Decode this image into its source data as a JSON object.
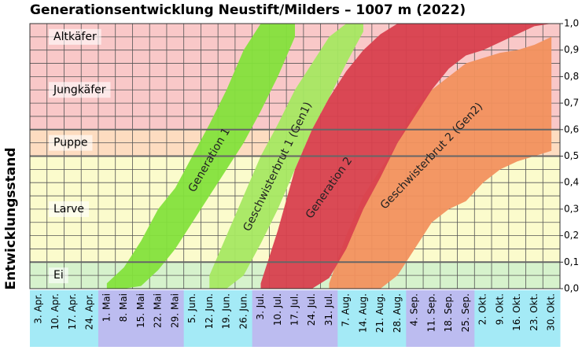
{
  "chart_data": {
    "type": "band",
    "title": "Generationsentwicklung Neustift/Milders – 1007 m (2022)",
    "y_label": "Entwicklungsstand",
    "categories": [
      "3. Apr.",
      "10. Apr.",
      "17. Apr.",
      "24. Apr.",
      "1. Mai",
      "8. Mai",
      "15. Mai",
      "22. Mai",
      "29. Mai",
      "5. Jun.",
      "12. Jun.",
      "19. Jun.",
      "26. Jun.",
      "3. Jul.",
      "10. Jul.",
      "17. Jul.",
      "24. Jul.",
      "31. Jul.",
      "7. Aug.",
      "14. Aug.",
      "21. Aug.",
      "28. Aug.",
      "4. Sep.",
      "11. Sep.",
      "18. Sep.",
      "25. Sep.",
      "2. Okt.",
      "9. Okt.",
      "16. Okt.",
      "23. Okt.",
      "30. Okt."
    ],
    "x_label_colors": [
      "#a4eaf6",
      "#bcbcf0"
    ],
    "ylim": [
      0,
      1
    ],
    "yticks": [
      {
        "value": 0,
        "label": "0,0"
      },
      {
        "value": 0.1,
        "label": "0,1"
      },
      {
        "value": 0.2,
        "label": "0,2"
      },
      {
        "value": 0.3,
        "label": "0,3"
      },
      {
        "value": 0.4,
        "label": "0,4"
      },
      {
        "value": 0.5,
        "label": "0,5"
      },
      {
        "value": 0.6,
        "label": "0,6"
      },
      {
        "value": 0.7,
        "label": "0,7"
      },
      {
        "value": 0.8,
        "label": "0,8"
      },
      {
        "value": 0.9,
        "label": "0,9"
      },
      {
        "value": 1,
        "label": "1,0"
      }
    ],
    "grid": true,
    "stages": [
      {
        "name": "Ei",
        "from": 0,
        "to": 0.1,
        "color": "#d6f2cc"
      },
      {
        "name": "Larve",
        "from": 0.1,
        "to": 0.5,
        "color": "#fbfbcc"
      },
      {
        "name": "Puppe",
        "from": 0.5,
        "to": 0.6,
        "color": "#fddcc0"
      },
      {
        "name": "Jungkäfer",
        "from": 0.6,
        "to": 0.9,
        "color": "#f9c8c8"
      },
      {
        "name": "Altkäfer",
        "from": 0.9,
        "to": 1,
        "color": "#f9c8c8"
      }
    ],
    "series": [
      {
        "name": "Generation 1",
        "color": "#84e23c",
        "upper": [
          null,
          null,
          null,
          null,
          0.02,
          0.08,
          0.18,
          0.3,
          0.38,
          0.5,
          0.62,
          0.75,
          0.9,
          1,
          1,
          1,
          null,
          null,
          null,
          null,
          null,
          null,
          null,
          null,
          null,
          null,
          null,
          null,
          null,
          null,
          null
        ],
        "lower": [
          null,
          null,
          null,
          null,
          0,
          0,
          0.01,
          0.07,
          0.15,
          0.25,
          0.35,
          0.45,
          0.55,
          0.67,
          0.8,
          0.95,
          null,
          null,
          null,
          null,
          null,
          null,
          null,
          null,
          null,
          null,
          null,
          null,
          null,
          null,
          null
        ]
      },
      {
        "name": "Geschwisterbrut 1 (Gen1)",
        "color": "#a6e862",
        "upper": [
          null,
          null,
          null,
          null,
          null,
          null,
          null,
          null,
          null,
          null,
          0.05,
          0.2,
          0.35,
          0.5,
          0.62,
          0.75,
          0.85,
          0.95,
          1,
          1,
          null,
          null,
          null,
          null,
          null,
          null,
          null,
          null,
          null,
          null,
          null
        ],
        "lower": [
          null,
          null,
          null,
          null,
          null,
          null,
          null,
          null,
          null,
          null,
          0,
          0,
          0.05,
          0.17,
          0.3,
          0.45,
          0.6,
          0.72,
          0.85,
          0.97,
          null,
          null,
          null,
          null,
          null,
          null,
          null,
          null,
          null,
          null,
          null
        ]
      },
      {
        "name": "Geschwisterbrut 2 (Gen2)",
        "color": "#f2915e",
        "upper": [
          null,
          null,
          null,
          null,
          null,
          null,
          null,
          null,
          null,
          null,
          null,
          null,
          null,
          null,
          null,
          null,
          null,
          0.02,
          0.2,
          0.35,
          0.45,
          0.55,
          0.68,
          0.75,
          0.8,
          0.85,
          0.87,
          0.89,
          0.9,
          0.92,
          0.95
        ],
        "lower": [
          null,
          null,
          null,
          null,
          null,
          null,
          null,
          null,
          null,
          null,
          null,
          null,
          null,
          null,
          null,
          null,
          null,
          0,
          0,
          0,
          0,
          0.05,
          0.15,
          0.25,
          0.3,
          0.33,
          0.4,
          0.45,
          0.48,
          0.5,
          0.52
        ]
      },
      {
        "name": "Generation 2",
        "color": "#d8404e",
        "upper": [
          null,
          null,
          null,
          null,
          null,
          null,
          null,
          null,
          null,
          null,
          null,
          null,
          null,
          0.02,
          0.22,
          0.45,
          0.6,
          0.72,
          0.82,
          0.9,
          0.96,
          1,
          1,
          1,
          1,
          1,
          1,
          1,
          1,
          1,
          1
        ],
        "lower": [
          null,
          null,
          null,
          null,
          null,
          null,
          null,
          null,
          null,
          null,
          null,
          null,
          null,
          0,
          0,
          0,
          0,
          0.04,
          0.15,
          0.3,
          0.42,
          0.55,
          0.65,
          0.75,
          0.83,
          0.88,
          0.9,
          0.93,
          0.96,
          0.99,
          1
        ]
      }
    ]
  }
}
